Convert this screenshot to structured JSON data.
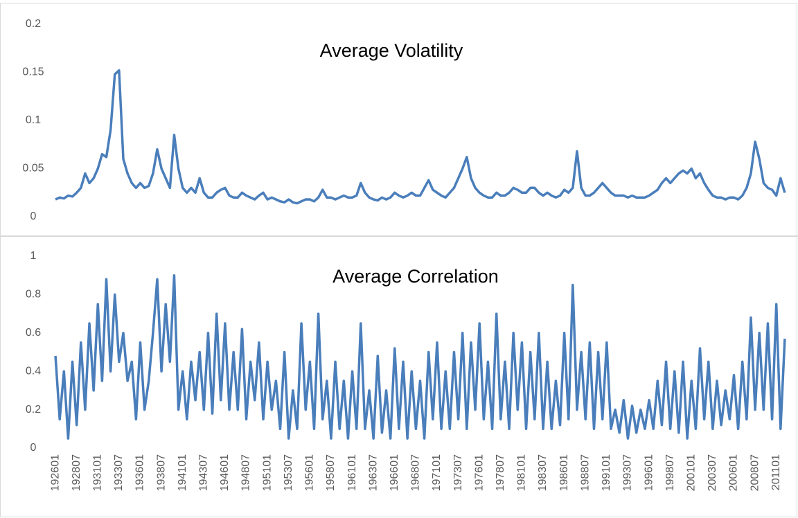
{
  "chart_data": [
    {
      "type": "line",
      "title": "Average Volatility",
      "color": "#4a7ebb",
      "ylim": [
        0,
        0.2
      ],
      "yticks": [
        0,
        0.05,
        0.1,
        0.15,
        0.2
      ],
      "values": [
        0.018,
        0.02,
        0.019,
        0.022,
        0.021,
        0.025,
        0.03,
        0.045,
        0.035,
        0.04,
        0.05,
        0.065,
        0.062,
        0.09,
        0.148,
        0.152,
        0.06,
        0.045,
        0.035,
        0.03,
        0.035,
        0.03,
        0.032,
        0.045,
        0.07,
        0.05,
        0.04,
        0.03,
        0.085,
        0.05,
        0.03,
        0.025,
        0.03,
        0.025,
        0.04,
        0.025,
        0.02,
        0.02,
        0.025,
        0.028,
        0.03,
        0.022,
        0.02,
        0.02,
        0.025,
        0.022,
        0.02,
        0.018,
        0.022,
        0.025,
        0.018,
        0.02,
        0.018,
        0.016,
        0.015,
        0.018,
        0.015,
        0.014,
        0.016,
        0.018,
        0.018,
        0.016,
        0.02,
        0.028,
        0.02,
        0.02,
        0.018,
        0.02,
        0.022,
        0.02,
        0.02,
        0.022,
        0.035,
        0.025,
        0.02,
        0.018,
        0.017,
        0.02,
        0.018,
        0.02,
        0.025,
        0.022,
        0.02,
        0.022,
        0.025,
        0.022,
        0.022,
        0.03,
        0.038,
        0.028,
        0.025,
        0.022,
        0.02,
        0.025,
        0.03,
        0.04,
        0.05,
        0.062,
        0.04,
        0.03,
        0.025,
        0.022,
        0.02,
        0.02,
        0.025,
        0.022,
        0.022,
        0.025,
        0.03,
        0.028,
        0.025,
        0.025,
        0.03,
        0.03,
        0.025,
        0.022,
        0.025,
        0.022,
        0.02,
        0.022,
        0.028,
        0.025,
        0.03,
        0.068,
        0.03,
        0.022,
        0.022,
        0.025,
        0.03,
        0.035,
        0.03,
        0.025,
        0.022,
        0.022,
        0.022,
        0.02,
        0.022,
        0.02,
        0.02,
        0.02,
        0.022,
        0.025,
        0.028,
        0.035,
        0.04,
        0.035,
        0.04,
        0.045,
        0.048,
        0.045,
        0.05,
        0.04,
        0.045,
        0.035,
        0.028,
        0.022,
        0.02,
        0.02,
        0.018,
        0.02,
        0.02,
        0.018,
        0.022,
        0.03,
        0.045,
        0.078,
        0.06,
        0.035,
        0.03,
        0.028,
        0.022,
        0.04,
        0.025
      ]
    },
    {
      "type": "line",
      "title": "Average Correlation",
      "color": "#4a7ebb",
      "ylim": [
        0,
        1
      ],
      "yticks": [
        0,
        0.2,
        0.4,
        0.6,
        0.8,
        1
      ],
      "categories": [
        "192601",
        null,
        null,
        null,
        null,
        "192807",
        null,
        null,
        null,
        null,
        "193101",
        null,
        null,
        null,
        null,
        "193307",
        null,
        null,
        null,
        null,
        "193601",
        null,
        null,
        null,
        null,
        "193807",
        null,
        null,
        null,
        null,
        "194101",
        null,
        null,
        null,
        null,
        "194307",
        null,
        null,
        null,
        null,
        "194601",
        null,
        null,
        null,
        null,
        "194807",
        null,
        null,
        null,
        null,
        "195101",
        null,
        null,
        null,
        null,
        "195307",
        null,
        null,
        null,
        null,
        "195601",
        null,
        null,
        null,
        null,
        "195807",
        null,
        null,
        null,
        null,
        "196101",
        null,
        null,
        null,
        null,
        "196307",
        null,
        null,
        null,
        null,
        "196601",
        null,
        null,
        null,
        null,
        "196807",
        null,
        null,
        null,
        null,
        "197101",
        null,
        null,
        null,
        null,
        "197307",
        null,
        null,
        null,
        null,
        "197601",
        null,
        null,
        null,
        null,
        "197807",
        null,
        null,
        null,
        null,
        "198101",
        null,
        null,
        null,
        null,
        "198307",
        null,
        null,
        null,
        null,
        "198601",
        null,
        null,
        null,
        null,
        "198807",
        null,
        null,
        null,
        null,
        "199101",
        null,
        null,
        null,
        null,
        "199307",
        null,
        null,
        null,
        null,
        "199601",
        null,
        null,
        null,
        null,
        "199807",
        null,
        null,
        null,
        null,
        "200101",
        null,
        null,
        null,
        null,
        "200307",
        null,
        null,
        null,
        null,
        "200601",
        null,
        null,
        null,
        null,
        "200807",
        null,
        null,
        null,
        null,
        "201101",
        null,
        null
      ],
      "values": [
        0.48,
        0.15,
        0.4,
        0.05,
        0.45,
        0.12,
        0.55,
        0.2,
        0.65,
        0.3,
        0.75,
        0.35,
        0.88,
        0.4,
        0.8,
        0.45,
        0.6,
        0.35,
        0.45,
        0.15,
        0.55,
        0.2,
        0.35,
        0.6,
        0.88,
        0.4,
        0.75,
        0.45,
        0.9,
        0.2,
        0.4,
        0.15,
        0.45,
        0.25,
        0.5,
        0.2,
        0.6,
        0.18,
        0.7,
        0.25,
        0.65,
        0.2,
        0.5,
        0.2,
        0.62,
        0.15,
        0.45,
        0.25,
        0.55,
        0.15,
        0.45,
        0.2,
        0.35,
        0.1,
        0.5,
        0.05,
        0.3,
        0.1,
        0.65,
        0.2,
        0.45,
        0.1,
        0.7,
        0.15,
        0.35,
        0.05,
        0.45,
        0.1,
        0.35,
        0.05,
        0.4,
        0.1,
        0.65,
        0.1,
        0.3,
        0.05,
        0.48,
        0.08,
        0.3,
        0.05,
        0.52,
        0.1,
        0.45,
        0.05,
        0.4,
        0.1,
        0.35,
        0.05,
        0.5,
        0.15,
        0.55,
        0.1,
        0.4,
        0.1,
        0.5,
        0.15,
        0.6,
        0.1,
        0.55,
        0.2,
        0.65,
        0.15,
        0.45,
        0.1,
        0.7,
        0.15,
        0.45,
        0.1,
        0.6,
        0.2,
        0.55,
        0.1,
        0.5,
        0.15,
        0.6,
        0.1,
        0.45,
        0.1,
        0.35,
        0.12,
        0.6,
        0.15,
        0.85,
        0.2,
        0.5,
        0.15,
        0.55,
        0.1,
        0.5,
        0.15,
        0.55,
        0.1,
        0.2,
        0.08,
        0.25,
        0.05,
        0.22,
        0.08,
        0.2,
        0.1,
        0.25,
        0.1,
        0.35,
        0.12,
        0.45,
        0.1,
        0.4,
        0.08,
        0.45,
        0.05,
        0.35,
        0.1,
        0.52,
        0.15,
        0.45,
        0.1,
        0.35,
        0.12,
        0.3,
        0.15,
        0.38,
        0.1,
        0.45,
        0.15,
        0.68,
        0.2,
        0.6,
        0.2,
        0.65,
        0.15,
        0.75,
        0.1,
        0.57
      ]
    }
  ]
}
